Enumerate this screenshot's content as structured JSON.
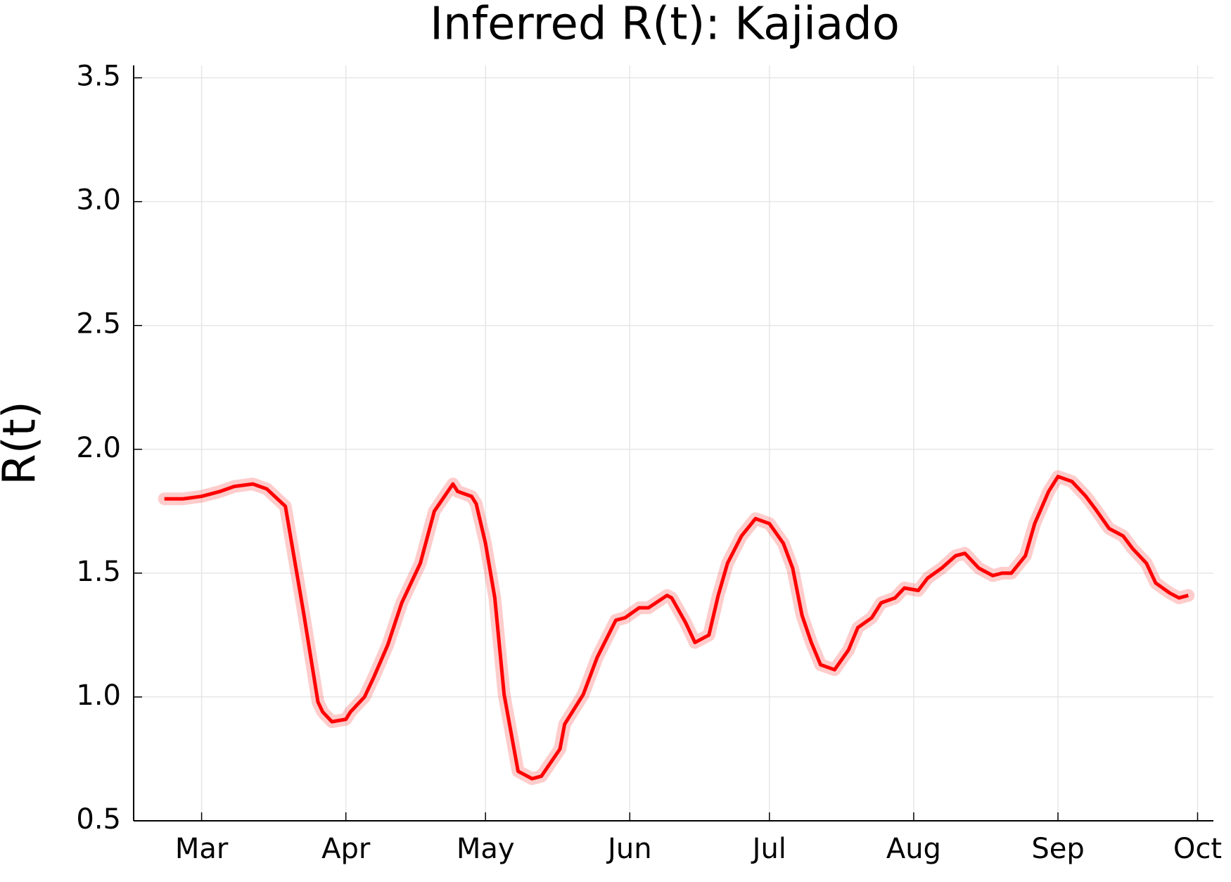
{
  "chart_data": {
    "type": "line",
    "title": "Inferred R(t): Kajiado",
    "ylabel": "R(t)",
    "x": [
      53,
      57,
      61,
      65,
      68,
      72,
      75,
      79,
      83,
      86,
      87,
      89,
      92,
      93,
      96,
      98,
      101,
      104,
      108,
      111,
      115,
      116,
      119,
      120,
      122,
      124,
      126,
      129,
      132,
      134,
      138,
      139,
      143,
      146,
      150,
      152,
      155,
      157,
      161,
      162,
      165,
      167,
      170,
      172,
      174,
      177,
      180,
      183,
      186,
      188,
      190,
      192,
      194,
      197,
      200,
      202,
      205,
      207,
      210,
      212,
      215,
      217,
      220,
      223,
      225,
      228,
      231,
      233,
      235,
      238,
      240,
      243,
      245,
      248,
      251,
      253,
      256,
      259,
      261,
      264,
      266,
      269,
      271,
      273
    ],
    "series": [
      {
        "name": "R(t)",
        "color": "#ff0000",
        "values": [
          1.8,
          1.8,
          1.81,
          1.83,
          1.85,
          1.86,
          1.84,
          1.77,
          1.33,
          0.98,
          0.94,
          0.9,
          0.91,
          0.94,
          1.0,
          1.08,
          1.21,
          1.38,
          1.54,
          1.75,
          1.86,
          1.83,
          1.81,
          1.78,
          1.62,
          1.4,
          1.01,
          0.7,
          0.67,
          0.68,
          0.79,
          0.89,
          1.01,
          1.16,
          1.31,
          1.32,
          1.36,
          1.36,
          1.41,
          1.4,
          1.3,
          1.22,
          1.25,
          1.41,
          1.54,
          1.65,
          1.72,
          1.7,
          1.62,
          1.52,
          1.33,
          1.22,
          1.13,
          1.11,
          1.19,
          1.28,
          1.32,
          1.38,
          1.4,
          1.44,
          1.43,
          1.48,
          1.52,
          1.57,
          1.58,
          1.52,
          1.49,
          1.5,
          1.5,
          1.57,
          1.7,
          1.83,
          1.89,
          1.87,
          1.81,
          1.76,
          1.68,
          1.65,
          1.6,
          1.54,
          1.46,
          1.42,
          1.4,
          1.41
        ]
      }
    ],
    "xlim": [
      46.4,
      278.4
    ],
    "xticks": [
      {
        "value": 61,
        "label": "Mar"
      },
      {
        "value": 92,
        "label": "Apr"
      },
      {
        "value": 122,
        "label": "May"
      },
      {
        "value": 153,
        "label": "Jun"
      },
      {
        "value": 183,
        "label": "Jul"
      },
      {
        "value": 214,
        "label": "Aug"
      },
      {
        "value": 245,
        "label": "Sep"
      },
      {
        "value": 275,
        "label": "Oct"
      }
    ],
    "ylim": [
      0.5,
      3.55
    ],
    "yticks": [
      {
        "value": 0.5,
        "label": "0.5"
      },
      {
        "value": 1.0,
        "label": "1.0"
      },
      {
        "value": 1.5,
        "label": "1.5"
      },
      {
        "value": 2.0,
        "label": "2.0"
      },
      {
        "value": 2.5,
        "label": "2.5"
      },
      {
        "value": 3.0,
        "label": "3.0"
      },
      {
        "value": 3.5,
        "label": "3.5"
      }
    ],
    "grid": true
  }
}
